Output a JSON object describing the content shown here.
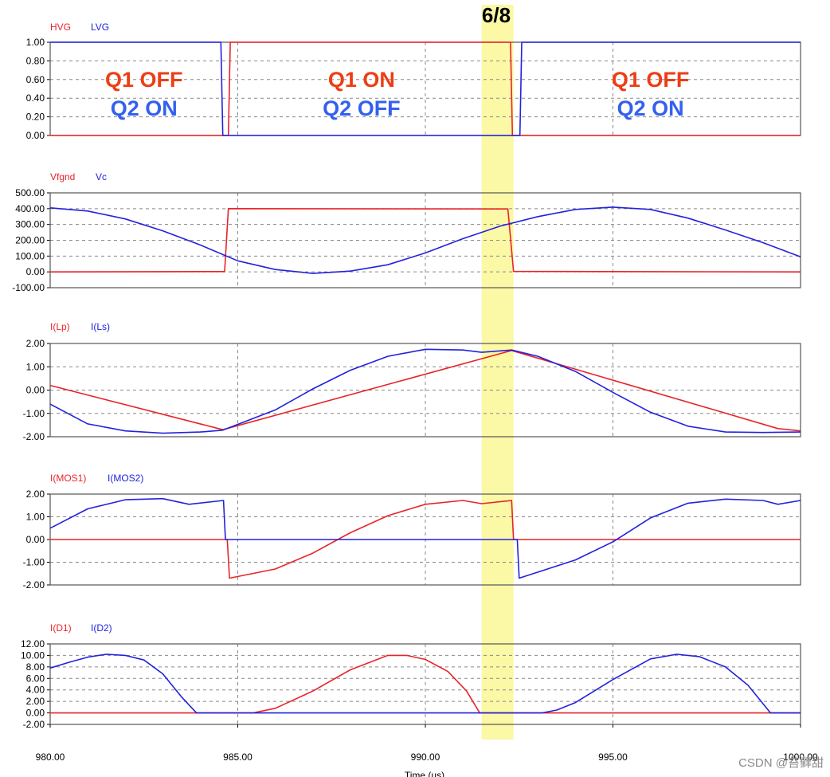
{
  "chart_data": {
    "type": "line",
    "x_title": "Time (us)",
    "x_range": [
      980,
      1000
    ],
    "x_ticks": [
      980,
      985,
      990,
      995,
      1000
    ],
    "x_tick_labels": [
      "980.00",
      "985.00",
      "990.00",
      "995.00",
      "1000.00"
    ],
    "highlight": {
      "label": "6/8",
      "x_start": 991.5,
      "x_end": 992.35,
      "color": "#fbf8a6"
    },
    "colors": {
      "red": "#e8242a",
      "blue": "#2222dd",
      "note_red": "#ee3d14",
      "note_blue": "#3360ee",
      "grid": "#888888"
    },
    "panels": [
      {
        "id": "gate",
        "legend": [
          "HVG",
          "LVG"
        ],
        "ylim": [
          0,
          1
        ],
        "y_ticks": [
          0,
          0.2,
          0.4,
          0.6,
          0.8,
          1.0
        ],
        "y_tick_labels": [
          "0.00",
          "0.20",
          "0.40",
          "0.60",
          "0.80",
          "1.00"
        ],
        "notes": [
          {
            "x": 982.5,
            "q1": "Q1 OFF",
            "q2": "Q2 ON"
          },
          {
            "x": 988.3,
            "q1": "Q1 ON",
            "q2": "Q2 OFF"
          },
          {
            "x": 996.0,
            "q1": "Q1 OFF",
            "q2": "Q2 ON"
          }
        ],
        "series": [
          {
            "name": "HVG",
            "color": "red",
            "points": [
              [
                980,
                0
              ],
              [
                984.75,
                0
              ],
              [
                984.8,
                1
              ],
              [
                992.27,
                1
              ],
              [
                992.32,
                0
              ],
              [
                1000,
                0
              ]
            ]
          },
          {
            "name": "LVG",
            "color": "blue",
            "points": [
              [
                980,
                1
              ],
              [
                984.55,
                1
              ],
              [
                984.6,
                0
              ],
              [
                992.52,
                0
              ],
              [
                992.57,
                1
              ],
              [
                1000,
                1
              ]
            ]
          }
        ]
      },
      {
        "id": "voltage",
        "legend": [
          "Vfgnd",
          "Vc"
        ],
        "ylim": [
          -100,
          500
        ],
        "y_ticks": [
          -100,
          0,
          100,
          200,
          300,
          400,
          500
        ],
        "y_tick_labels": [
          "-100.00",
          "0.00",
          "100.00",
          "200.00",
          "300.00",
          "400.00",
          "500.00"
        ],
        "series": [
          {
            "name": "Vfgnd",
            "color": "red",
            "points": [
              [
                980,
                0
              ],
              [
                984.65,
                2
              ],
              [
                984.75,
                400
              ],
              [
                992.2,
                398
              ],
              [
                992.35,
                3
              ],
              [
                1000,
                0
              ]
            ]
          },
          {
            "name": "Vc",
            "color": "blue",
            "points": [
              [
                980,
                405
              ],
              [
                981,
                385
              ],
              [
                982,
                335
              ],
              [
                983,
                260
              ],
              [
                984,
                170
              ],
              [
                985,
                70
              ],
              [
                986,
                15
              ],
              [
                987,
                -10
              ],
              [
                988,
                5
              ],
              [
                989,
                45
              ],
              [
                990,
                120
              ],
              [
                991,
                210
              ],
              [
                992,
                290
              ],
              [
                993,
                350
              ],
              [
                994,
                395
              ],
              [
                995,
                410
              ],
              [
                996,
                395
              ],
              [
                997,
                340
              ],
              [
                998,
                265
              ],
              [
                999,
                185
              ],
              [
                1000,
                95
              ]
            ]
          }
        ]
      },
      {
        "id": "inductor_current",
        "legend": [
          "I(Lp)",
          "I(Ls)"
        ],
        "ylim": [
          -2,
          2
        ],
        "y_ticks": [
          -2,
          -1,
          0,
          1,
          2
        ],
        "y_tick_labels": [
          "-2.00",
          "-1.00",
          "0.00",
          "1.00",
          "2.00"
        ],
        "series": [
          {
            "name": "I(Lp)",
            "color": "red",
            "points": [
              [
                980,
                0.2
              ],
              [
                984.6,
                -1.7
              ],
              [
                992.3,
                1.7
              ],
              [
                999.4,
                -1.65
              ],
              [
                1000,
                -1.75
              ]
            ]
          },
          {
            "name": "I(Ls)",
            "color": "blue",
            "points": [
              [
                980,
                -0.6
              ],
              [
                981,
                -1.45
              ],
              [
                982,
                -1.75
              ],
              [
                983,
                -1.85
              ],
              [
                984,
                -1.8
              ],
              [
                984.6,
                -1.72
              ],
              [
                986,
                -0.85
              ],
              [
                987,
                0.05
              ],
              [
                988,
                0.85
              ],
              [
                989,
                1.45
              ],
              [
                990,
                1.75
              ],
              [
                991,
                1.72
              ],
              [
                991.5,
                1.62
              ],
              [
                992.3,
                1.72
              ],
              [
                993,
                1.45
              ],
              [
                994,
                0.8
              ],
              [
                995,
                -0.1
              ],
              [
                996,
                -0.95
              ],
              [
                997,
                -1.55
              ],
              [
                998,
                -1.8
              ],
              [
                999,
                -1.82
              ],
              [
                1000,
                -1.8
              ]
            ]
          }
        ]
      },
      {
        "id": "mos_current",
        "legend": [
          "I(MOS1)",
          "I(MOS2)"
        ],
        "ylim": [
          -2,
          2
        ],
        "y_ticks": [
          -2,
          -1,
          0,
          1,
          2
        ],
        "y_tick_labels": [
          "-2.00",
          "-1.00",
          "0.00",
          "1.00",
          "2.00"
        ],
        "series": [
          {
            "name": "I(MOS1)",
            "color": "red",
            "points": [
              [
                980,
                0
              ],
              [
                984.72,
                0
              ],
              [
                984.78,
                -1.7
              ],
              [
                986,
                -1.3
              ],
              [
                987,
                -0.6
              ],
              [
                988,
                0.3
              ],
              [
                989,
                1.05
              ],
              [
                990,
                1.55
              ],
              [
                991,
                1.72
              ],
              [
                991.5,
                1.58
              ],
              [
                992.3,
                1.72
              ],
              [
                992.35,
                0
              ],
              [
                1000,
                0
              ]
            ]
          },
          {
            "name": "I(MOS2)",
            "color": "blue",
            "points": [
              [
                980,
                0.5
              ],
              [
                981,
                1.35
              ],
              [
                982,
                1.75
              ],
              [
                983,
                1.8
              ],
              [
                983.7,
                1.55
              ],
              [
                984.62,
                1.72
              ],
              [
                984.67,
                0
              ],
              [
                992.45,
                0
              ],
              [
                992.5,
                -1.7
              ],
              [
                994,
                -0.9
              ],
              [
                995,
                -0.1
              ],
              [
                996,
                0.95
              ],
              [
                997,
                1.6
              ],
              [
                998,
                1.78
              ],
              [
                999,
                1.72
              ],
              [
                999.4,
                1.55
              ],
              [
                1000,
                1.72
              ]
            ]
          }
        ]
      },
      {
        "id": "diode_current",
        "legend": [
          "I(D1)",
          "I(D2)"
        ],
        "ylim": [
          -2,
          12
        ],
        "y_ticks": [
          -2,
          0,
          2,
          4,
          6,
          8,
          10,
          12
        ],
        "y_tick_labels": [
          "-2.00",
          "0.00",
          "2.00",
          "4.00",
          "6.00",
          "8.00",
          "10.00",
          "12.00"
        ],
        "series": [
          {
            "name": "I(D1)",
            "color": "red",
            "points": [
              [
                980,
                0
              ],
              [
                985.4,
                0
              ],
              [
                986,
                0.8
              ],
              [
                987,
                3.8
              ],
              [
                988,
                7.5
              ],
              [
                989,
                10
              ],
              [
                989.5,
                10
              ],
              [
                990,
                9.3
              ],
              [
                990.6,
                7.2
              ],
              [
                991.1,
                3.8
              ],
              [
                991.45,
                0
              ],
              [
                1000,
                0
              ]
            ]
          },
          {
            "name": "I(D2)",
            "color": "blue",
            "points": [
              [
                980,
                7.8
              ],
              [
                980.5,
                8.8
              ],
              [
                981,
                9.7
              ],
              [
                981.5,
                10.2
              ],
              [
                982,
                10
              ],
              [
                982.5,
                9.2
              ],
              [
                983,
                6.8
              ],
              [
                983.5,
                2.8
              ],
              [
                983.9,
                0
              ],
              [
                993.1,
                0
              ],
              [
                993.5,
                0.5
              ],
              [
                994,
                1.8
              ],
              [
                995,
                5.8
              ],
              [
                996,
                9.4
              ],
              [
                996.7,
                10.2
              ],
              [
                997.3,
                9.8
              ],
              [
                998,
                8
              ],
              [
                998.6,
                4.8
              ],
              [
                999.2,
                0
              ],
              [
                1000,
                0
              ]
            ]
          }
        ]
      }
    ]
  }
}
